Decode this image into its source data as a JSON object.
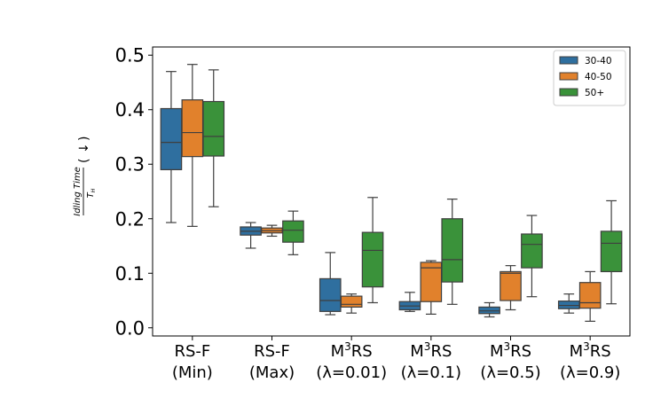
{
  "chart_data": {
    "type": "boxplot",
    "title": "",
    "ylabel": {
      "numerator": "Idling Time",
      "denominator_base": "T",
      "denominator_sub": "H",
      "paren_open": "(",
      "arrow": "↓",
      "paren_close": ")"
    },
    "ylim": [
      -0.015,
      0.515
    ],
    "yticks": [
      {
        "value": 0.0,
        "label": "0.0"
      },
      {
        "value": 0.1,
        "label": "0.1"
      },
      {
        "value": 0.2,
        "label": "0.2"
      },
      {
        "value": 0.3,
        "label": "0.3"
      },
      {
        "value": 0.4,
        "label": "0.4"
      },
      {
        "value": 0.5,
        "label": "0.5"
      }
    ],
    "categories": [
      {
        "line1_base": "RS-F",
        "line1_sup": "",
        "line1_tail": "",
        "line2": "(Min)"
      },
      {
        "line1_base": "RS-F",
        "line1_sup": "",
        "line1_tail": "",
        "line2": "(Max)"
      },
      {
        "line1_base": "M",
        "line1_sup": "3",
        "line1_tail": "RS",
        "line2": "(λ=0.01)"
      },
      {
        "line1_base": "M",
        "line1_sup": "3",
        "line1_tail": "RS",
        "line2": "(λ=0.1)"
      },
      {
        "line1_base": "M",
        "line1_sup": "3",
        "line1_tail": "RS",
        "line2": "(λ=0.5)"
      },
      {
        "line1_base": "M",
        "line1_sup": "3",
        "line1_tail": "RS",
        "line2": "(λ=0.9)"
      }
    ],
    "legend_position": "top-right",
    "series": [
      {
        "name": "30-40",
        "color": "#2f6f9f",
        "boxes": [
          {
            "min": 0.193,
            "q1": 0.29,
            "median": 0.34,
            "q3": 0.402,
            "max": 0.47
          },
          {
            "min": 0.146,
            "q1": 0.17,
            "median": 0.177,
            "q3": 0.185,
            "max": 0.193
          },
          {
            "min": 0.024,
            "q1": 0.03,
            "median": 0.05,
            "q3": 0.09,
            "max": 0.138
          },
          {
            "min": 0.03,
            "q1": 0.033,
            "median": 0.04,
            "q3": 0.048,
            "max": 0.065
          },
          {
            "min": 0.02,
            "q1": 0.026,
            "median": 0.031,
            "q3": 0.038,
            "max": 0.046
          },
          {
            "min": 0.027,
            "q1": 0.035,
            "median": 0.041,
            "q3": 0.049,
            "max": 0.062
          }
        ]
      },
      {
        "name": "40-50",
        "color": "#e1812c",
        "boxes": [
          {
            "min": 0.186,
            "q1": 0.314,
            "median": 0.358,
            "q3": 0.418,
            "max": 0.483
          },
          {
            "min": 0.168,
            "q1": 0.174,
            "median": 0.178,
            "q3": 0.183,
            "max": 0.188
          },
          {
            "min": 0.027,
            "q1": 0.038,
            "median": 0.043,
            "q3": 0.058,
            "max": 0.062
          },
          {
            "min": 0.025,
            "q1": 0.048,
            "median": 0.11,
            "q3": 0.12,
            "max": 0.123
          },
          {
            "min": 0.033,
            "q1": 0.05,
            "median": 0.1,
            "q3": 0.103,
            "max": 0.114
          },
          {
            "min": 0.012,
            "q1": 0.036,
            "median": 0.046,
            "q3": 0.083,
            "max": 0.103
          }
        ]
      },
      {
        "name": "50+",
        "color": "#3a923a",
        "boxes": [
          {
            "min": 0.222,
            "q1": 0.315,
            "median": 0.351,
            "q3": 0.415,
            "max": 0.473
          },
          {
            "min": 0.134,
            "q1": 0.157,
            "median": 0.179,
            "q3": 0.196,
            "max": 0.214
          },
          {
            "min": 0.046,
            "q1": 0.075,
            "median": 0.142,
            "q3": 0.175,
            "max": 0.239
          },
          {
            "min": 0.043,
            "q1": 0.084,
            "median": 0.125,
            "q3": 0.2,
            "max": 0.236
          },
          {
            "min": 0.057,
            "q1": 0.11,
            "median": 0.153,
            "q3": 0.172,
            "max": 0.206
          },
          {
            "min": 0.044,
            "q1": 0.103,
            "median": 0.155,
            "q3": 0.177,
            "max": 0.233
          }
        ]
      }
    ]
  }
}
